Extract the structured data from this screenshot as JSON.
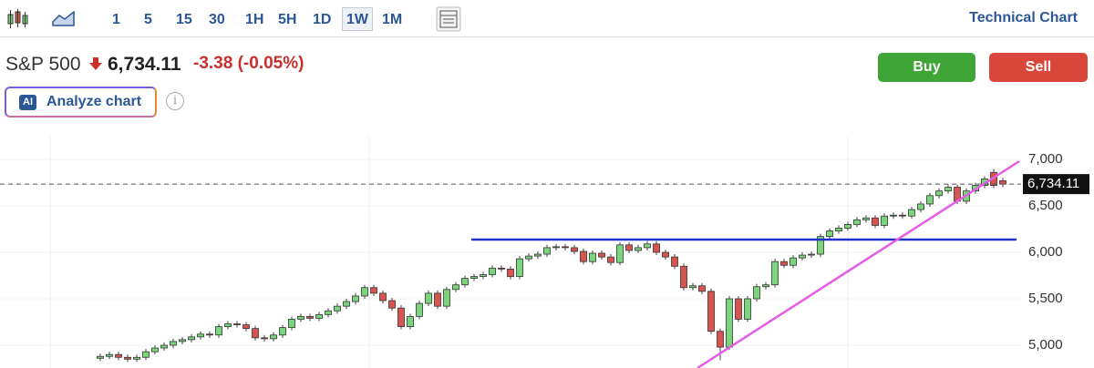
{
  "toolbar": {
    "intervals": [
      "1",
      "5",
      "15",
      "30",
      "1H",
      "5H",
      "1D",
      "1W",
      "1M"
    ],
    "active_interval_index": 7,
    "link": "Technical Chart"
  },
  "quote": {
    "symbol": "S&P 500",
    "price": "6,734.11",
    "change": "-3.38",
    "change_percent": "(-0.05%)"
  },
  "actions": {
    "buy": "Buy",
    "sell": "Sell",
    "ai_badge": "AI",
    "analyze": "Analyze chart"
  },
  "chart_data": {
    "type": "candlestick",
    "up_color": "#7ad67a",
    "down_color": "#d9534f",
    "ylim": [
      4755,
      7245
    ],
    "yticks": [
      {
        "value": 5000,
        "label": "5,000"
      },
      {
        "value": 5500,
        "label": "5,500"
      },
      {
        "value": 6000,
        "label": "6,000"
      },
      {
        "value": 6500,
        "label": "6,500"
      },
      {
        "value": 7000,
        "label": "7,000"
      }
    ],
    "last_price": {
      "value": 6734.11,
      "label": "6,734.11"
    },
    "series": [
      {
        "name": "S&P 500",
        "open": [
          4860,
          4880,
          4900,
          4870,
          4850,
          4870,
          4930,
          4970,
          5000,
          5040,
          5060,
          5090,
          5120,
          5110,
          5200,
          5230,
          5220,
          5180,
          5080,
          5070,
          5110,
          5190,
          5280,
          5310,
          5290,
          5330,
          5370,
          5420,
          5470,
          5530,
          5620,
          5560,
          5480,
          5400,
          5200,
          5310,
          5450,
          5560,
          5420,
          5600,
          5650,
          5720,
          5740,
          5760,
          5830,
          5820,
          5740,
          5930,
          5960,
          5980,
          6050,
          6060,
          6050,
          6010,
          5900,
          5990,
          5950,
          5890,
          6080,
          6020,
          6050,
          6090,
          6000,
          5950,
          5850,
          5620,
          5640,
          5580,
          5150,
          4980,
          5500,
          5280,
          5500,
          5630,
          5650,
          5900,
          5860,
          5940,
          5970,
          5980,
          6170,
          6230,
          6260,
          6300,
          6350,
          6370,
          6290,
          6390,
          6400,
          6390,
          6460,
          6520,
          6610,
          6660,
          6700,
          6550,
          6660,
          6720,
          6860,
          6770
        ],
        "high": [
          4910,
          4930,
          4930,
          4900,
          4900,
          4960,
          5000,
          5030,
          5070,
          5090,
          5120,
          5150,
          5150,
          5230,
          5260,
          5260,
          5250,
          5210,
          5110,
          5140,
          5220,
          5310,
          5340,
          5340,
          5360,
          5400,
          5450,
          5500,
          5560,
          5650,
          5650,
          5590,
          5510,
          5430,
          5340,
          5480,
          5590,
          5590,
          5630,
          5680,
          5750,
          5770,
          5790,
          5860,
          5860,
          5850,
          5960,
          5990,
          6010,
          6080,
          6090,
          6090,
          6080,
          6040,
          6020,
          6020,
          5980,
          6110,
          6110,
          6080,
          6120,
          6120,
          6030,
          5980,
          5880,
          5670,
          5670,
          5610,
          5180,
          5530,
          5530,
          5530,
          5660,
          5680,
          5930,
          5930,
          5970,
          6000,
          6010,
          6200,
          6260,
          6290,
          6330,
          6380,
          6400,
          6400,
          6420,
          6430,
          6430,
          6490,
          6550,
          6640,
          6690,
          6730,
          6730,
          6690,
          6750,
          6820,
          6900,
          6800
        ],
        "low": [
          4830,
          4850,
          4840,
          4820,
          4820,
          4840,
          4900,
          4940,
          4970,
          5010,
          5030,
          5060,
          5080,
          5080,
          5170,
          5190,
          5150,
          5050,
          5040,
          5040,
          5080,
          5160,
          5250,
          5260,
          5260,
          5300,
          5340,
          5390,
          5440,
          5500,
          5530,
          5450,
          5370,
          5170,
          5170,
          5280,
          5420,
          5390,
          5390,
          5570,
          5620,
          5690,
          5710,
          5730,
          5790,
          5710,
          5710,
          5900,
          5930,
          5950,
          6020,
          6020,
          5980,
          5870,
          5870,
          5920,
          5860,
          5860,
          5990,
          5990,
          6020,
          5970,
          5920,
          5820,
          5590,
          5590,
          5550,
          5120,
          4840,
          4950,
          5250,
          5250,
          5470,
          5600,
          5620,
          5830,
          5830,
          5910,
          5940,
          5950,
          6140,
          6200,
          6230,
          6270,
          6320,
          6260,
          6260,
          6360,
          6360,
          6360,
          6430,
          6490,
          6580,
          6630,
          6520,
          6520,
          6630,
          6690,
          6690,
          6700
        ],
        "close": [
          4880,
          4900,
          4870,
          4850,
          4870,
          4930,
          4970,
          5000,
          5040,
          5060,
          5090,
          5120,
          5110,
          5200,
          5230,
          5220,
          5180,
          5080,
          5070,
          5110,
          5190,
          5280,
          5310,
          5290,
          5330,
          5370,
          5420,
          5470,
          5530,
          5620,
          5560,
          5480,
          5400,
          5200,
          5310,
          5450,
          5560,
          5420,
          5600,
          5650,
          5720,
          5740,
          5760,
          5830,
          5820,
          5740,
          5930,
          5960,
          5980,
          6050,
          6060,
          6050,
          6010,
          5900,
          5990,
          5950,
          5890,
          6080,
          6020,
          6050,
          6090,
          6000,
          5950,
          5850,
          5620,
          5640,
          5580,
          5150,
          4980,
          5500,
          5280,
          5500,
          5630,
          5650,
          5900,
          5860,
          5940,
          5970,
          5980,
          6170,
          6230,
          6260,
          6300,
          6350,
          6370,
          6290,
          6390,
          6400,
          6390,
          6460,
          6520,
          6610,
          6660,
          6700,
          6550,
          6660,
          6720,
          6790,
          6720,
          6734.11
        ]
      }
    ]
  }
}
